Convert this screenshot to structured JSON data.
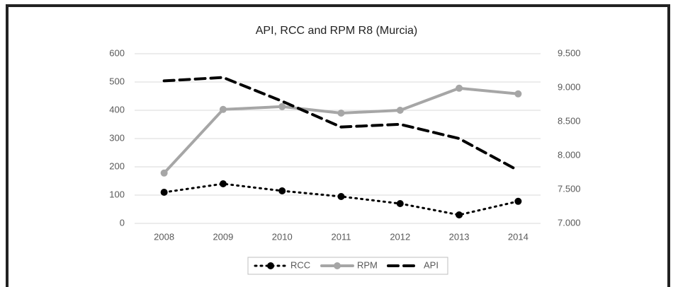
{
  "chart_data": {
    "type": "line",
    "title": "API, RCC and RPM R8 (Murcia)",
    "categories": [
      "2008",
      "2009",
      "2010",
      "2011",
      "2012",
      "2013",
      "2014"
    ],
    "series": [
      {
        "name": "RCC",
        "color": "#000000",
        "dash": "dotted",
        "marker": true,
        "values": [
          110,
          140,
          115,
          95,
          70,
          30,
          78
        ]
      },
      {
        "name": "RPM",
        "color": "#a6a6a6",
        "dash": "solid",
        "marker": true,
        "values": [
          178,
          403,
          413,
          390,
          400,
          478,
          458
        ]
      },
      {
        "name": "API",
        "color": "#000000",
        "dash": "dashed",
        "marker": false,
        "axis": "y2",
        "values": [
          9100,
          9150,
          8800,
          8420,
          8460,
          8250,
          7780
        ]
      }
    ],
    "ylim": [
      0,
      600
    ],
    "yticks": [
      0,
      100,
      200,
      300,
      400,
      500,
      600
    ],
    "y2lim": [
      7000,
      9500
    ],
    "y2ticks": [
      {
        "value": 7000,
        "label": "7.000"
      },
      {
        "value": 7500,
        "label": "7.500"
      },
      {
        "value": 8000,
        "label": "8.000"
      },
      {
        "value": 8500,
        "label": "8.500"
      },
      {
        "value": 9000,
        "label": "9.000"
      },
      {
        "value": 9500,
        "label": "9.500"
      }
    ],
    "grid": true,
    "legend": "bottom"
  }
}
